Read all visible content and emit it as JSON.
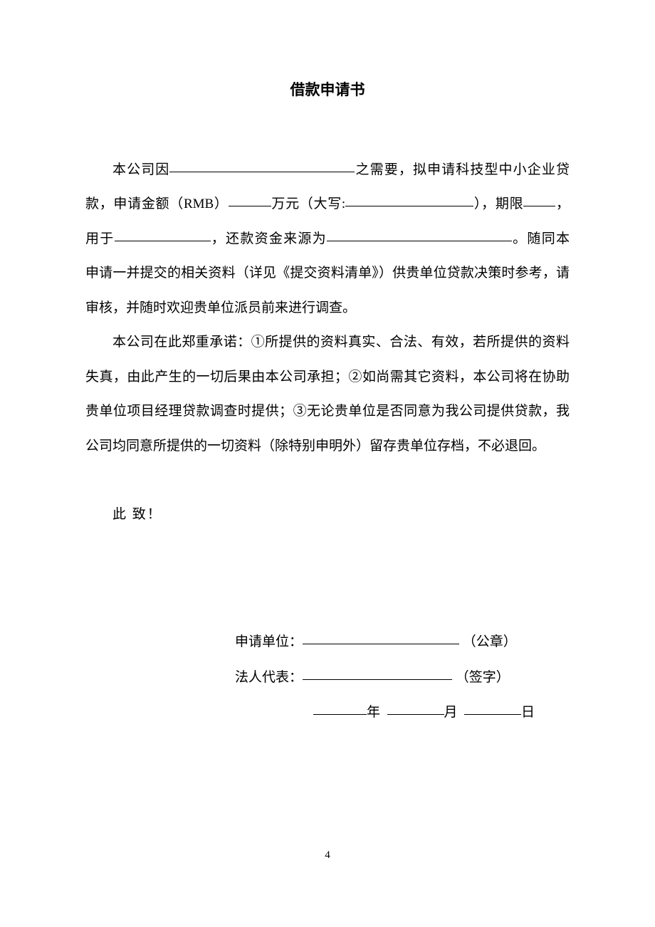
{
  "title": "借款申请书",
  "p1_seg1": "本公司因",
  "p1_seg2": "之需要，拟申请科技型中小企业贷款，申请金额（RMB）",
  "p1_seg3": "万元（大写:",
  "p1_seg4": "），期限",
  "p1_seg5": "，用于",
  "p1_seg6": "，还款资金来源为",
  "p1_seg7": "。随同本申请一并提交的相关资料（详见《提交资料清单》）供贵单位贷款决策时参考，请审核，并随时欢迎贵单位派员前来进行调查。",
  "p2": "本公司在此郑重承诺：①所提供的资料真实、合法、有效，若所提供的资料失真，由此产生的一切后果由本公司承担；②如尚需其它资料，本公司将在协助贵单位项目经理贷款调查时提供；③无论贵单位是否同意为我公司提供贷款，我公司均同意所提供的一切资料（除特别申明外）留存贵单位存档，不必退回。",
  "closing": "此 致！",
  "sig_unit_label": "申请单位：",
  "sig_unit_suffix": "（公章）",
  "sig_rep_label": "法人代表：",
  "sig_rep_suffix": "（签字）",
  "year_label": "年",
  "month_label": "月",
  "day_label": "日",
  "page_number": "4",
  "blank_widths": {
    "reason": 260,
    "amount": 60,
    "amount_cn": 180,
    "term": 45,
    "use": 135,
    "source": 260,
    "sig_unit": 220,
    "sig_rep": 210,
    "year": 75,
    "month": 80,
    "day": 80
  },
  "colors": {
    "text": "#000000",
    "bg": "#ffffff"
  }
}
